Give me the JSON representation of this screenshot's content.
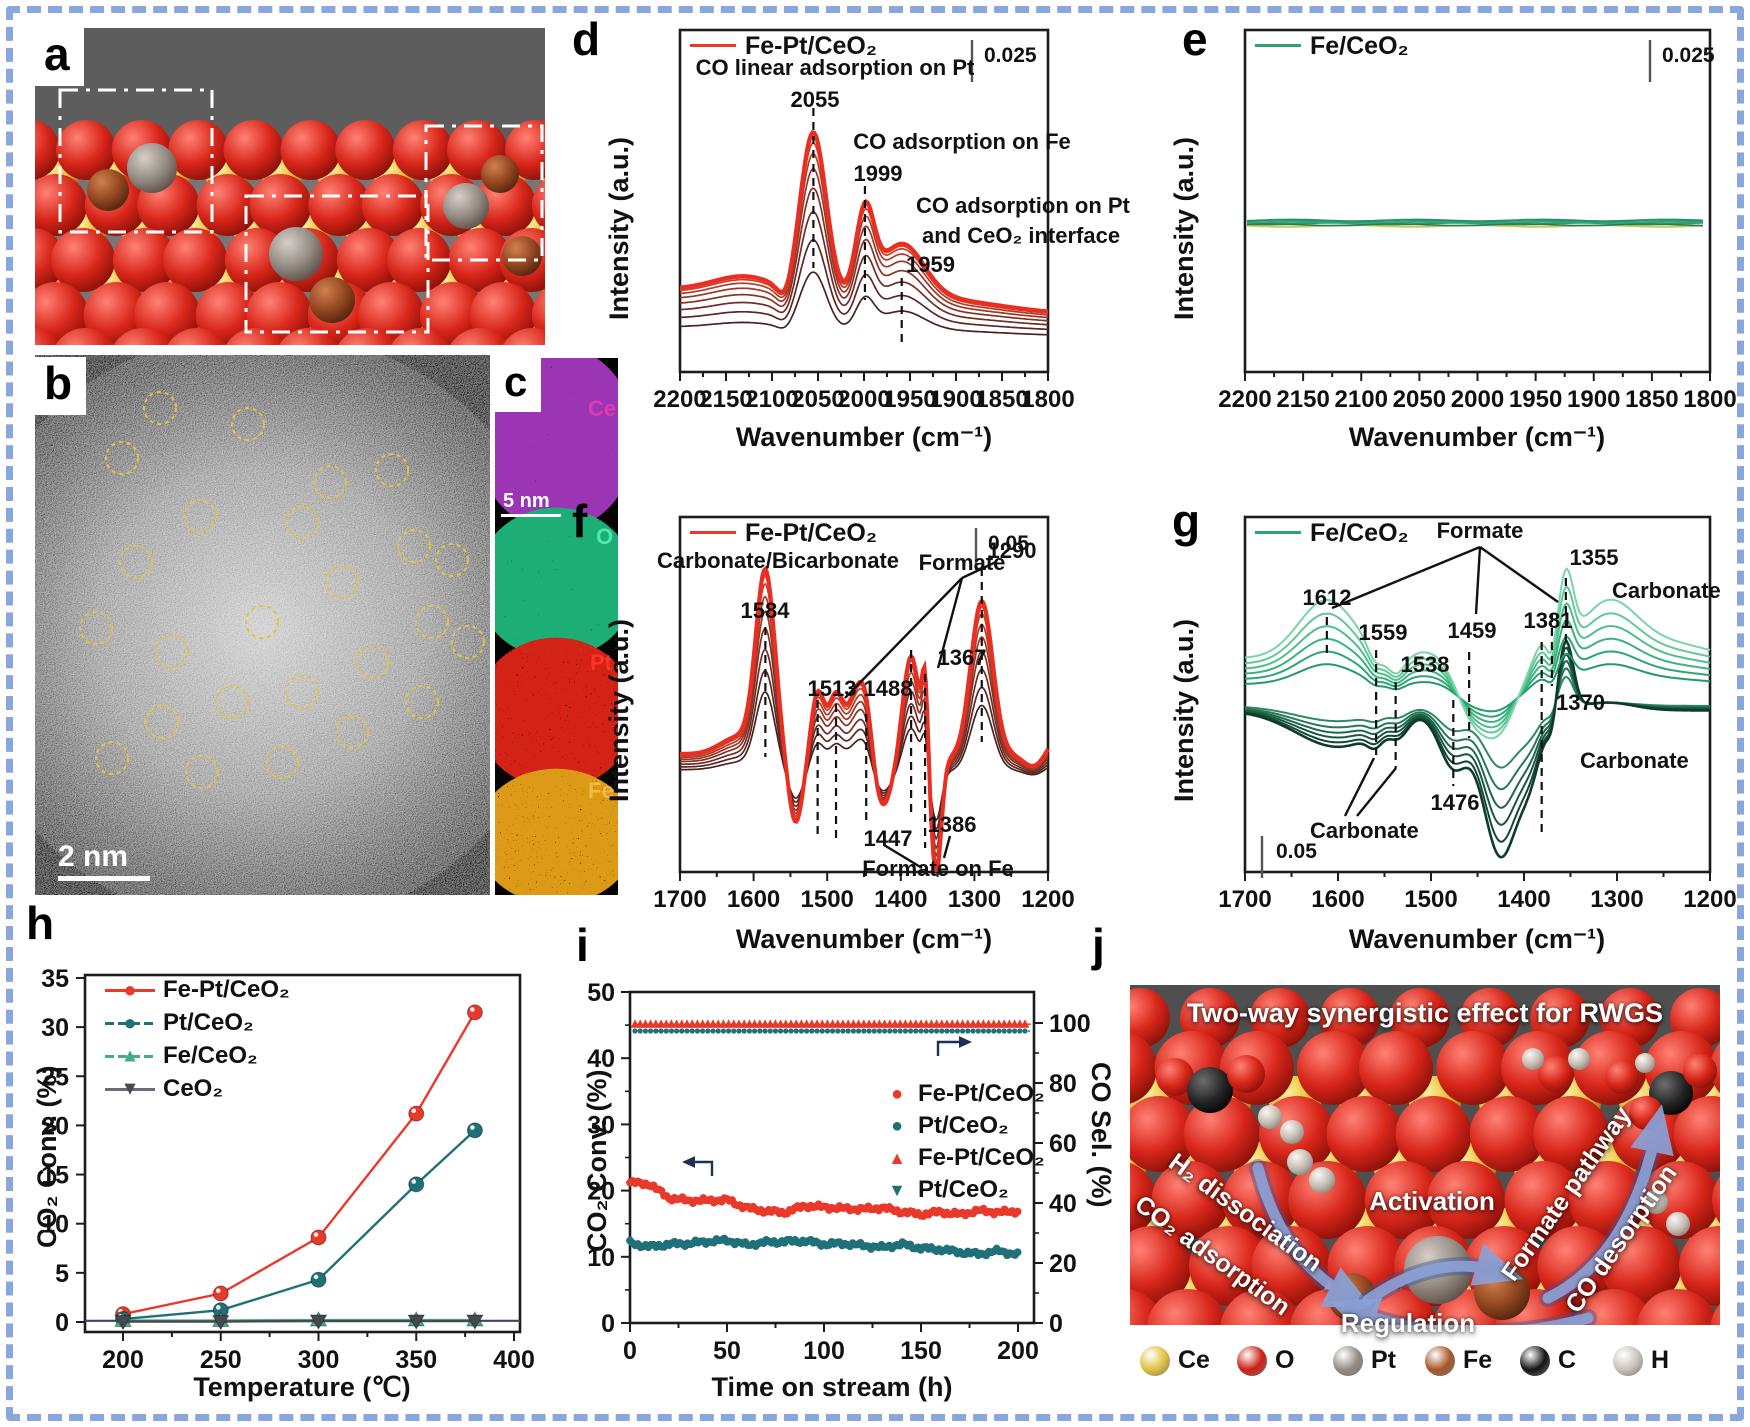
{
  "figure": {
    "border_color": "#8aa7dd",
    "background": "#ffffff"
  },
  "labels": {
    "a": "a",
    "b": "b",
    "c": "c",
    "d": "d",
    "e": "e",
    "f": "f",
    "g": "g",
    "h": "h",
    "i": "i",
    "j": "j"
  },
  "panel_a": {
    "description": "3D atomic model of Fe-Pt/CeO2 surface"
  },
  "panel_b": {
    "scale_bar": "2 nm",
    "atom_circles": [
      [
        160,
        408
      ],
      [
        122,
        458
      ],
      [
        248,
        424
      ],
      [
        330,
        482
      ],
      [
        392,
        470
      ],
      [
        302,
        522
      ],
      [
        200,
        516
      ],
      [
        136,
        562
      ],
      [
        96,
        628
      ],
      [
        172,
        652
      ],
      [
        262,
        622
      ],
      [
        342,
        582
      ],
      [
        414,
        546
      ],
      [
        432,
        622
      ],
      [
        372,
        662
      ],
      [
        302,
        692
      ],
      [
        232,
        702
      ],
      [
        162,
        722
      ],
      [
        112,
        758
      ],
      [
        202,
        772
      ],
      [
        282,
        762
      ],
      [
        352,
        732
      ],
      [
        422,
        702
      ],
      [
        468,
        642
      ],
      [
        452,
        560
      ]
    ]
  },
  "panel_c": {
    "scale_bar": "5 nm",
    "maps": [
      {
        "label": "Ce",
        "label_color": "#e03ab0",
        "blob_color": "#9b34b4"
      },
      {
        "label": "O",
        "label_color": "#4de8b2",
        "blob_color": "#1fae74"
      },
      {
        "label": "Pt",
        "label_color": "#ff3326",
        "blob_color": "#d42418"
      },
      {
        "label": "Fe",
        "label_color": "#f4b942",
        "blob_color": "#dd9a18"
      }
    ]
  },
  "panel_d": {
    "legend": "Fe-Pt/CeO₂",
    "legend_color": "#e8392b",
    "scale_label": "0.025",
    "xlabel": "Wavenumber (cm⁻¹)",
    "ylabel": "Intensity (a.u.)",
    "ann": {
      "l1": "CO linear adsorption on Pt",
      "v1": "2055",
      "l2": "CO adsorption on Fe",
      "v2": "1999",
      "l3a": "CO adsorption on Pt",
      "l3b": "and CeO₂ interface",
      "v3": "1959"
    }
  },
  "panel_e": {
    "legend": "Fe/CeO₂",
    "legend_color": "#2da374",
    "scale_label": "0.025",
    "xlabel": "Wavenumber (cm⁻¹)",
    "ylabel": "Intensity (a.u.)"
  },
  "panel_f": {
    "legend": "Fe-Pt/CeO₂",
    "legend_color": "#e8392b",
    "scale_label": "0.05",
    "xlabel": "Wavenumber (cm⁻¹)",
    "ylabel": "Intensity (a.u.)",
    "ann": {
      "carb": "Carbonate/Bicarbonate",
      "v1584": "1584",
      "formate": "Formate",
      "v1513": "1513",
      "v1488": "1488",
      "v1367": "1367",
      "v1290": "1290",
      "v1447": "1447",
      "v1386": "1386",
      "onfe": "Formate on Fe"
    }
  },
  "panel_g": {
    "legend": "Fe/CeO₂",
    "legend_color": "#2da374",
    "scale_label": "0.05",
    "xlabel": "Wavenumber (cm⁻¹)",
    "ylabel": "Intensity (a.u.)",
    "ann": {
      "formate": "Formate",
      "v1612": "1612",
      "v1559": "1559",
      "v1538": "1538",
      "v1459": "1459",
      "v1381": "1381",
      "v1355": "1355",
      "carb_tr": "Carbonate",
      "v1370": "1370",
      "carb_mr": "Carbonate",
      "v1476": "1476",
      "carb_bl": "Carbonate"
    }
  },
  "panel_h": {
    "ylabel": "CO₂ Conv. (%)",
    "xlabel": "Temperature (℃)",
    "legend": [
      {
        "label": "Fe-Pt/CeO₂",
        "color": "#e8392b",
        "marker": "circle"
      },
      {
        "label": "Pt/CeO₂",
        "color": "#20707a",
        "marker": "circle"
      },
      {
        "label": "Fe/CeO₂",
        "color": "#3eb07b",
        "marker": "triangle-up"
      },
      {
        "label": "CeO₂",
        "color": "#474752",
        "marker": "triangle-down"
      }
    ]
  },
  "panel_i": {
    "ylabel": "CO₂ Conv. (%)",
    "ylabel_right": "CO Sel. (%)",
    "xlabel": "Time on stream (h)",
    "legend": [
      {
        "label": "Fe-Pt/CeO₂",
        "color": "#e8392b",
        "marker": "circle"
      },
      {
        "label": "Pt/CeO₂",
        "color": "#20707a",
        "marker": "circle"
      },
      {
        "label": "Fe-Pt/CeO₂",
        "color": "#e8392b",
        "marker": "triangle-up"
      },
      {
        "label": "Pt/CeO₂",
        "color": "#20707a",
        "marker": "triangle-down"
      }
    ]
  },
  "panel_j": {
    "title": "Two-way synergistic effect for RWGS",
    "ann": {
      "h2": "H₂ dissociation",
      "co2": "CO₂ adsorption",
      "act": "Activation",
      "formate": "Formate pathway",
      "co": "CO desorption",
      "reg": "Regulation"
    },
    "legend": [
      {
        "label": "Ce",
        "color": "#dec13e"
      },
      {
        "label": "O",
        "color": "#cd2015"
      },
      {
        "label": "Pt",
        "color": "#938b83"
      },
      {
        "label": "Fe",
        "color": "#a8552a"
      },
      {
        "label": "C",
        "color": "#141414"
      },
      {
        "label": "H",
        "color": "#c9c1b8"
      }
    ]
  },
  "chart_data": [
    {
      "id": "d",
      "type": "line",
      "system": "Fe-Pt/CeO₂",
      "xlabel": "Wavenumber (cm⁻¹)",
      "ylabel": "Intensity (a.u.)",
      "x_range": [
        2200,
        1800
      ],
      "x_ticks": [
        2200,
        2150,
        2100,
        2050,
        2000,
        1950,
        1900,
        1850,
        1800
      ],
      "minor_step": 25,
      "scale_bar": 0.025,
      "peak_annotations": [
        {
          "wavenumber": 2055,
          "assignment": "CO linear adsorption on Pt"
        },
        {
          "wavenumber": 1999,
          "assignment": "CO adsorption on Fe"
        },
        {
          "wavenumber": 1959,
          "assignment": "CO adsorption on Pt and CeO₂ interface"
        }
      ],
      "peaks": [
        {
          "center": 2055,
          "width": 14,
          "height": 1.02
        },
        {
          "center": 1999,
          "width": 10,
          "height": 0.52
        },
        {
          "center": 1959,
          "width": 24,
          "height": 0.34
        },
        {
          "center": 2128,
          "width": 36,
          "height": 0.11
        },
        {
          "center": 2085,
          "width": 8,
          "height": -0.1
        },
        {
          "center": 1915,
          "width": 55,
          "height": 0.045
        }
      ],
      "curve_scales": [
        0.35,
        0.5,
        0.63,
        0.74,
        0.83,
        0.9,
        0.95,
        0.98,
        1.0
      ],
      "curve_colors": [
        "#4a2322",
        "#5c2824",
        "#702d25",
        "#863226",
        "#9d3727",
        "#b43b28",
        "#cb3f29",
        "#e4452e",
        "#ea2f22"
      ]
    },
    {
      "id": "e",
      "type": "line",
      "system": "Fe/CeO₂",
      "xlabel": "Wavenumber (cm⁻¹)",
      "ylabel": "Intensity (a.u.)",
      "x_range": [
        2200,
        1800
      ],
      "x_ticks": [
        2200,
        2150,
        2100,
        2050,
        2000,
        1950,
        1900,
        1850,
        1800
      ],
      "minor_step": 25,
      "scale_bar": 0.025,
      "flat": true,
      "note": "no CO adsorption bands",
      "line_colors": [
        "#d9c44e",
        "#2d9a6c",
        "#35a676",
        "#27906a",
        "#1f7f5d"
      ]
    },
    {
      "id": "f",
      "type": "line",
      "system": "Fe-Pt/CeO₂",
      "xlabel": "Wavenumber (cm⁻¹)",
      "ylabel": "Intensity (a.u.)",
      "x_range": [
        1700,
        1200
      ],
      "x_ticks": [
        1700,
        1600,
        1500,
        1400,
        1300,
        1200
      ],
      "minor_step": 50,
      "scale_bar": 0.05,
      "peak_annotations": [
        {
          "wavenumber": 1584,
          "assignment": "Carbonate/Bicarbonate"
        },
        {
          "wavenumber": 1513,
          "assignment": "Formate"
        },
        {
          "wavenumber": 1488,
          "assignment": "Formate"
        },
        {
          "wavenumber": 1367,
          "assignment": "Formate"
        },
        {
          "wavenumber": 1290,
          "assignment": "Formate"
        },
        {
          "wavenumber": 1447,
          "assignment": "Formate on Fe"
        },
        {
          "wavenumber": 1386,
          "assignment": "Formate on Fe"
        }
      ],
      "peaks": [
        {
          "center": 1620,
          "width": 25,
          "height": 0.12
        },
        {
          "center": 1584,
          "width": 13,
          "height": 1.2
        },
        {
          "center": 1543,
          "width": 10,
          "height": -0.45
        },
        {
          "center": 1513,
          "width": 9,
          "height": 0.42
        },
        {
          "center": 1488,
          "width": 10,
          "height": 0.4
        },
        {
          "center": 1462,
          "width": 11,
          "height": 0.36
        },
        {
          "center": 1447,
          "width": 9,
          "height": 0.34
        },
        {
          "center": 1425,
          "width": 13,
          "height": -0.33
        },
        {
          "center": 1386,
          "width": 11,
          "height": 0.68
        },
        {
          "center": 1367,
          "width": 4,
          "height": 0.5
        },
        {
          "center": 1352,
          "width": 7,
          "height": -0.78
        },
        {
          "center": 1290,
          "width": 15,
          "height": 1.05
        },
        {
          "center": 1215,
          "width": 18,
          "height": -0.25
        },
        {
          "center": 1200,
          "width": 30,
          "height": 0.25
        }
      ],
      "curve_scales": [
        0.42,
        0.52,
        0.62,
        0.72,
        0.8,
        0.87,
        0.93,
        0.97,
        1.0
      ],
      "curve_colors": [
        "#4a2322",
        "#5c2824",
        "#702d25",
        "#863226",
        "#9d3727",
        "#b43b28",
        "#cb3f29",
        "#e4452e",
        "#ea2f22"
      ]
    },
    {
      "id": "g",
      "type": "line",
      "system": "Fe/CeO₂",
      "xlabel": "Wavenumber (cm⁻¹)",
      "ylabel": "Intensity (a.u.)",
      "x_range": [
        1700,
        1200
      ],
      "x_ticks": [
        1700,
        1600,
        1500,
        1400,
        1300,
        1200
      ],
      "minor_step": 50,
      "scale_bar": 0.05,
      "peak_annotations": [
        {
          "wavenumber": 1612,
          "assignment": "Formate"
        },
        {
          "wavenumber": 1459,
          "assignment": "Formate"
        },
        {
          "wavenumber": 1381,
          "assignment": "Formate"
        },
        {
          "wavenumber": 1355,
          "assignment": "Carbonate"
        },
        {
          "wavenumber": 1370,
          "assignment": "Carbonate"
        },
        {
          "wavenumber": 1559,
          "assignment": "Carbonate"
        },
        {
          "wavenumber": 1538,
          "assignment": "Carbonate"
        },
        {
          "wavenumber": 1476,
          "assignment": "Carbonate"
        }
      ],
      "pos_peaks": [
        {
          "center": 1612,
          "width": 30,
          "height": 0.45
        },
        {
          "center": 1560,
          "width": 8,
          "height": -0.12
        },
        {
          "center": 1538,
          "width": 9,
          "height": -0.14
        },
        {
          "center": 1505,
          "width": 15,
          "height": 0.05
        },
        {
          "center": 1459,
          "width": 16,
          "height": -0.3
        },
        {
          "center": 1428,
          "width": 20,
          "height": -0.55
        },
        {
          "center": 1381,
          "width": 9,
          "height": 0.12
        },
        {
          "center": 1370,
          "width": 5,
          "height": -0.14
        },
        {
          "center": 1355,
          "width": 8,
          "height": 0.55
        },
        {
          "center": 1310,
          "width": 30,
          "height": 0.4
        },
        {
          "center": 1250,
          "width": 45,
          "height": 0.12
        }
      ],
      "neg_peaks": [
        {
          "center": 1600,
          "width": 45,
          "height": -0.28
        },
        {
          "center": 1560,
          "width": 8,
          "height": -0.1
        },
        {
          "center": 1535,
          "width": 10,
          "height": -0.12
        },
        {
          "center": 1476,
          "width": 15,
          "height": -0.42
        },
        {
          "center": 1425,
          "width": 19,
          "height": -1.12
        },
        {
          "center": 1392,
          "width": 12,
          "height": -0.35
        },
        {
          "center": 1355,
          "width": 8,
          "height": 0.52
        },
        {
          "center": 1370,
          "width": 5,
          "height": -0.15
        },
        {
          "center": 1310,
          "width": 28,
          "height": 0.06
        }
      ],
      "light_scales": [
        0.34,
        0.47,
        0.6,
        0.73,
        0.86,
        1.0
      ],
      "light_colors": [
        "#25996a",
        "#2ea673",
        "#3bb37e",
        "#4cc08b",
        "#60ca97",
        "#79d4a6"
      ],
      "dark_scales": [
        0.42,
        0.56,
        0.68,
        0.79,
        0.9,
        1.0
      ],
      "dark_colors": [
        "#2e8a63",
        "#277956",
        "#206849",
        "#1a583e",
        "#144833",
        "#0f3c2a"
      ]
    },
    {
      "id": "h",
      "type": "scatter-line",
      "xlabel": "Temperature (℃)",
      "ylabel": "CO₂ Conv. (%)",
      "xlim": [
        180,
        405
      ],
      "ylim": [
        0,
        35
      ],
      "x_ticks": [
        200,
        250,
        300,
        350,
        400
      ],
      "y_ticks": [
        0,
        5,
        10,
        15,
        20,
        25,
        30,
        35
      ],
      "series": [
        {
          "name": "Fe-Pt/CeO₂",
          "color": "#e8392b",
          "marker": "circle",
          "x": [
            200,
            250,
            300,
            350,
            380
          ],
          "y": [
            0.8,
            2.9,
            8.6,
            21.2,
            31.5
          ]
        },
        {
          "name": "Pt/CeO₂",
          "color": "#20707a",
          "marker": "circle",
          "x": [
            200,
            250,
            300,
            350,
            380
          ],
          "y": [
            0.3,
            1.2,
            4.3,
            14.0,
            19.5
          ]
        },
        {
          "name": "Fe/CeO₂",
          "color": "#3eb07b",
          "marker": "triangle-up",
          "x": [
            200,
            250,
            300,
            350,
            380
          ],
          "y": [
            0.15,
            0.15,
            0.2,
            0.2,
            0.2
          ]
        },
        {
          "name": "CeO₂",
          "color": "#474752",
          "marker": "triangle-down",
          "x": [
            200,
            250,
            300,
            350,
            380
          ],
          "y": [
            0.05,
            0.05,
            0.1,
            0.1,
            0.1
          ]
        }
      ]
    },
    {
      "id": "i",
      "type": "scatter",
      "xlabel": "Time on stream (h)",
      "ylabel_left": "CO₂ Conv. (%)",
      "ylabel_right": "CO Sel. (%)",
      "xlim": [
        0,
        205
      ],
      "ylim_left": [
        0,
        50
      ],
      "ylim_right": [
        0,
        110
      ],
      "x_ticks": [
        0,
        50,
        100,
        150,
        200
      ],
      "y_ticks_left": [
        0,
        10,
        20,
        30,
        40,
        50
      ],
      "y_ticks_right": [
        0,
        20,
        40,
        60,
        80,
        100
      ],
      "series": [
        {
          "name": "Fe-Pt/CeO₂ CO₂ conv.",
          "color": "#e8392b",
          "axis": "left",
          "x": [
            0,
            10,
            20,
            30,
            40,
            50,
            60,
            70,
            80,
            90,
            100,
            110,
            120,
            130,
            140,
            150,
            160,
            170,
            180,
            190,
            200
          ],
          "y": [
            21.2,
            21.0,
            18.9,
            18.5,
            18.5,
            18.6,
            17.4,
            16.9,
            16.7,
            17.7,
            17.5,
            17.3,
            17.2,
            17.4,
            16.8,
            16.4,
            16.8,
            16.4,
            17.0,
            16.7,
            16.9
          ]
        },
        {
          "name": "Pt/CeO₂ CO₂ conv.",
          "color": "#20707a",
          "axis": "left",
          "x": [
            0,
            10,
            20,
            30,
            40,
            50,
            60,
            70,
            80,
            90,
            100,
            110,
            120,
            130,
            140,
            150,
            160,
            170,
            180,
            190,
            200
          ],
          "y": [
            12.1,
            11.5,
            11.9,
            12.0,
            12.3,
            12.5,
            11.8,
            12.2,
            12.3,
            12.4,
            11.9,
            12.0,
            11.7,
            11.4,
            11.9,
            11.3,
            11.1,
            10.7,
            10.4,
            10.9,
            10.3
          ]
        },
        {
          "name": "Fe-Pt/CeO₂ CO sel.",
          "color": "#e8392b",
          "axis": "right",
          "constant": 99.6
        },
        {
          "name": "Pt/CeO₂ CO sel.",
          "color": "#20707a",
          "axis": "right",
          "constant": 99.0
        }
      ]
    }
  ]
}
